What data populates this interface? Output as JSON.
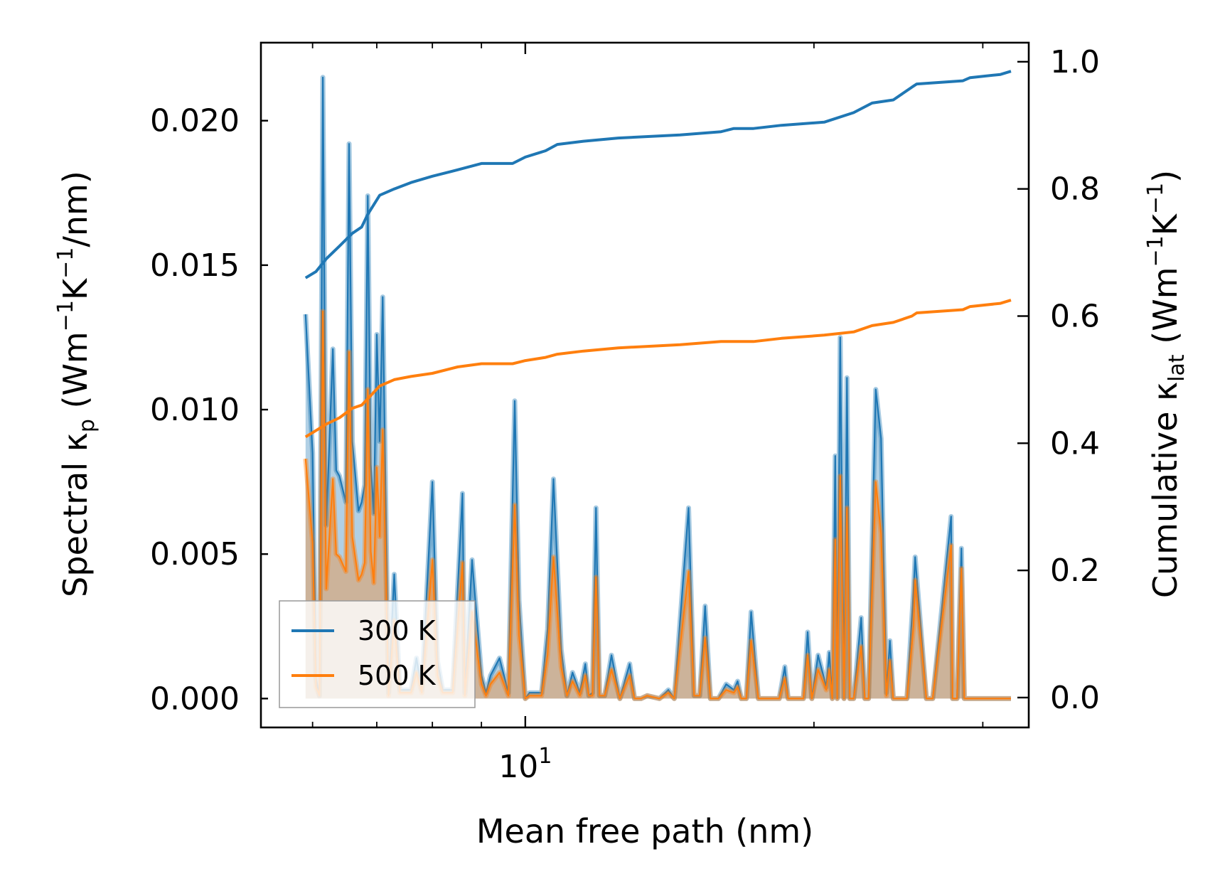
{
  "chart_data": {
    "type": "line",
    "title": "",
    "xlabel": "Mean free path (nm)",
    "ylabel_left": {
      "main": "Spectral κ",
      "sub": "p",
      "unit_pre": "(Wm",
      "exp1": "−1",
      "mid": "K",
      "exp2": "−1",
      "unit_post": "/nm)"
    },
    "ylabel_right": {
      "main": "Cumulative κ",
      "sub": "lat",
      "unit_pre": "(Wm",
      "exp1": "−1",
      "mid": "K",
      "exp2": "−1",
      "unit_post": ")"
    },
    "xscale": "log",
    "xlim": [
      5.3,
      33.5
    ],
    "ylim_left": [
      -0.001,
      0.0227
    ],
    "ylim_right": [
      -0.047,
      1.03
    ],
    "x_ticks": [
      {
        "value": 10,
        "base": "10",
        "exp": "1"
      }
    ],
    "y_ticks_left": [
      "0.000",
      "0.005",
      "0.010",
      "0.015",
      "0.020"
    ],
    "y_ticks_right": [
      "0.0",
      "0.2",
      "0.4",
      "0.6",
      "0.8",
      "1.0"
    ],
    "legend": {
      "position": "lower-left",
      "entries": [
        {
          "label": "300 K",
          "color": "#1f77b4"
        },
        {
          "label": "500 K",
          "color": "#ff7f0e"
        }
      ]
    },
    "series": [
      {
        "name": "300 K spectral",
        "axis": "left",
        "color": "#1f77b4",
        "fill": true,
        "x": [
          5.9,
          6.0,
          6.05,
          6.1,
          6.15,
          6.2,
          6.3,
          6.35,
          6.4,
          6.5,
          6.55,
          6.6,
          6.7,
          6.75,
          6.8,
          6.85,
          6.9,
          6.95,
          7.0,
          7.05,
          7.1,
          7.2,
          7.3,
          7.4,
          7.6,
          7.7,
          7.8,
          8.0,
          8.1,
          8.2,
          8.4,
          8.6,
          8.65,
          8.8,
          9.0,
          9.1,
          9.2,
          9.4,
          9.6,
          9.75,
          9.85,
          10.0,
          10.1,
          10.4,
          10.55,
          10.7,
          10.9,
          11.05,
          11.2,
          11.4,
          11.55,
          11.65,
          11.75,
          11.85,
          11.95,
          12.1,
          12.3,
          12.55,
          12.85,
          13.0,
          13.2,
          13.4,
          13.8,
          14.1,
          14.3,
          14.8,
          15.0,
          15.2,
          15.4,
          15.6,
          15.75,
          15.9,
          16.2,
          16.5,
          16.65,
          16.8,
          17.0,
          17.2,
          17.5,
          17.85,
          18.1,
          18.4,
          18.65,
          18.8,
          19.0,
          19.3,
          19.5,
          19.7,
          19.9,
          20.2,
          20.6,
          20.75,
          20.9,
          21.05,
          21.15,
          21.3,
          21.5,
          21.65,
          21.8,
          22.0,
          22.4,
          22.6,
          22.8,
          23.2,
          23.5,
          23.8,
          24.0,
          24.2,
          24.6,
          25.0,
          25.4,
          25.5,
          26.2,
          26.4,
          26.6,
          27.8,
          27.9,
          28.2,
          28.5,
          28.7,
          29.8,
          30.0,
          30.4,
          31.2,
          31.4,
          31.6,
          31.85,
          32.1
        ],
        "y": [
          0.0133,
          0.0085,
          0.0007,
          0.0001,
          0.0215,
          0.006,
          0.0121,
          0.0079,
          0.0077,
          0.0068,
          0.0192,
          0.0089,
          0.0065,
          0.0068,
          0.0074,
          0.0174,
          0.0081,
          0.0064,
          0.0126,
          0.0089,
          0.0139,
          0.0002,
          0.0043,
          0.0003,
          0.0003,
          0.0014,
          0.0003,
          0.0075,
          0.0013,
          0.0003,
          0.0003,
          0.0071,
          0.0002,
          0.0048,
          0.0008,
          0.0002,
          0.0008,
          0.0014,
          0.0002,
          0.0103,
          0.0034,
          0.0,
          0.0002,
          0.0002,
          0.0024,
          0.0076,
          0.0017,
          0.0001,
          0.0009,
          0.0002,
          0.0012,
          0.0001,
          0.0002,
          0.0066,
          0.0001,
          0.0001,
          0.0015,
          0.0,
          0.0012,
          0.0,
          0.0,
          0.0001,
          0.0,
          0.0003,
          0.0,
          0.0066,
          0.0001,
          0.0001,
          0.0032,
          0.0,
          0.0,
          0.0,
          0.0005,
          0.0003,
          0.0006,
          0.0,
          0.0,
          0.003,
          0.0,
          0.0,
          0.0,
          0.0,
          0.0011,
          0.0,
          0.0,
          0.0,
          0.0,
          0.0023,
          0.0,
          0.0015,
          0.0004,
          0.0016,
          0.0,
          0.0084,
          0.0,
          0.0125,
          0.0,
          0.0111,
          0.0,
          0.0,
          0.0028,
          0.0,
          0.0,
          0.0107,
          0.009,
          0.0002,
          0.002,
          0.0,
          0.0,
          0.0,
          0.0037,
          0.0049,
          0.0,
          0.0,
          0.0,
          0.0063,
          0.0,
          0.0,
          0.0052,
          0.0,
          0.0,
          0.0,
          0.0,
          0.0,
          0.0,
          0.0,
          0.0,
          0.0
        ]
      },
      {
        "name": "500 K spectral",
        "axis": "left",
        "color": "#ff7f0e",
        "fill": true,
        "x": [
          5.9,
          6.0,
          6.05,
          6.1,
          6.15,
          6.2,
          6.3,
          6.35,
          6.4,
          6.5,
          6.55,
          6.6,
          6.7,
          6.75,
          6.8,
          6.85,
          6.9,
          6.95,
          7.0,
          7.05,
          7.1,
          7.2,
          7.3,
          7.4,
          7.6,
          7.7,
          7.8,
          8.0,
          8.1,
          8.2,
          8.4,
          8.6,
          8.65,
          8.8,
          9.0,
          9.1,
          9.2,
          9.4,
          9.6,
          9.75,
          9.85,
          10.0,
          10.1,
          10.4,
          10.55,
          10.7,
          10.9,
          11.05,
          11.2,
          11.4,
          11.55,
          11.65,
          11.75,
          11.85,
          11.95,
          12.1,
          12.3,
          12.55,
          12.85,
          13.0,
          13.2,
          13.4,
          13.8,
          14.1,
          14.3,
          14.8,
          15.0,
          15.2,
          15.4,
          15.6,
          15.75,
          15.9,
          16.2,
          16.5,
          16.65,
          16.8,
          17.0,
          17.2,
          17.5,
          17.85,
          18.1,
          18.4,
          18.65,
          18.8,
          19.0,
          19.3,
          19.5,
          19.7,
          19.9,
          20.2,
          20.6,
          20.75,
          20.9,
          21.05,
          21.15,
          21.3,
          21.5,
          21.65,
          21.8,
          22.0,
          22.4,
          22.6,
          22.8,
          23.2,
          23.5,
          23.8,
          24.0,
          24.2,
          24.6,
          25.0,
          25.4,
          25.5,
          26.2,
          26.4,
          26.6,
          27.8,
          27.9,
          28.2,
          28.5,
          28.7,
          29.8,
          30.0,
          30.4,
          31.2,
          31.4,
          31.6,
          31.85,
          32.1
        ],
        "y": [
          0.0083,
          0.0054,
          0.0004,
          0.0001,
          0.0134,
          0.0038,
          0.0076,
          0.005,
          0.0049,
          0.0044,
          0.012,
          0.0056,
          0.0041,
          0.0043,
          0.0047,
          0.0107,
          0.0051,
          0.004,
          0.008,
          0.0056,
          0.0093,
          0.0001,
          0.0027,
          0.0002,
          0.0002,
          0.0009,
          0.0002,
          0.0048,
          0.0008,
          0.0002,
          0.0002,
          0.0047,
          0.0001,
          0.003,
          0.0005,
          0.0001,
          0.0005,
          0.0009,
          0.0001,
          0.0067,
          0.0022,
          0.0,
          0.0001,
          0.0001,
          0.0015,
          0.0049,
          0.0011,
          0.0001,
          0.0006,
          0.0001,
          0.0008,
          0.0001,
          0.0001,
          0.0042,
          0.0001,
          0.0001,
          0.001,
          0.0,
          0.0008,
          0.0,
          0.0,
          0.0001,
          0.0,
          0.0002,
          0.0,
          0.0044,
          0.0001,
          0.0001,
          0.0021,
          0.0,
          0.0,
          0.0,
          0.0003,
          0.0002,
          0.0004,
          0.0,
          0.0,
          0.002,
          0.0,
          0.0,
          0.0,
          0.0,
          0.0007,
          0.0,
          0.0,
          0.0,
          0.0,
          0.0015,
          0.0,
          0.001,
          0.0003,
          0.001,
          0.0,
          0.0055,
          0.0,
          0.0077,
          0.0,
          0.0066,
          0.0,
          0.0,
          0.0018,
          0.0,
          0.0,
          0.0075,
          0.0057,
          0.0001,
          0.0013,
          0.0,
          0.0,
          0.0,
          0.0025,
          0.0041,
          0.0,
          0.0,
          0.0,
          0.0053,
          0.0,
          0.0,
          0.0045,
          0.0,
          0.0,
          0.0,
          0.0,
          0.0,
          0.0,
          0.0,
          0.0,
          0.0
        ]
      },
      {
        "name": "300 K",
        "axis": "right",
        "color": "#1f77b4",
        "fill": false,
        "x": [
          5.9,
          6.05,
          6.2,
          6.4,
          6.6,
          6.75,
          6.85,
          7.05,
          7.3,
          7.6,
          8.0,
          8.5,
          9.0,
          9.7,
          10.0,
          10.5,
          10.8,
          11.5,
          12.5,
          14.5,
          16.0,
          16.5,
          17.3,
          18.5,
          20.5,
          22.0,
          23.0,
          24.2,
          25.3,
          25.6,
          28.6,
          29.1,
          31.3,
          32.1
        ],
        "y": [
          0.66,
          0.67,
          0.69,
          0.71,
          0.73,
          0.74,
          0.76,
          0.79,
          0.8,
          0.81,
          0.82,
          0.83,
          0.84,
          0.84,
          0.85,
          0.86,
          0.87,
          0.875,
          0.88,
          0.885,
          0.89,
          0.895,
          0.895,
          0.9,
          0.905,
          0.92,
          0.935,
          0.94,
          0.96,
          0.965,
          0.97,
          0.975,
          0.98,
          0.985
        ]
      },
      {
        "name": "500 K",
        "axis": "right",
        "color": "#ff7f0e",
        "fill": false,
        "x": [
          5.9,
          6.05,
          6.2,
          6.4,
          6.6,
          6.75,
          6.85,
          7.05,
          7.3,
          7.6,
          8.0,
          8.5,
          9.0,
          9.7,
          10.0,
          10.5,
          10.8,
          11.5,
          12.5,
          14.5,
          16.0,
          16.5,
          17.3,
          18.5,
          20.5,
          22.0,
          23.0,
          24.2,
          25.3,
          25.6,
          28.6,
          29.1,
          31.3,
          32.1
        ],
        "y": [
          0.41,
          0.42,
          0.43,
          0.44,
          0.455,
          0.46,
          0.47,
          0.49,
          0.5,
          0.505,
          0.51,
          0.52,
          0.525,
          0.525,
          0.53,
          0.535,
          0.54,
          0.545,
          0.55,
          0.555,
          0.56,
          0.56,
          0.56,
          0.565,
          0.57,
          0.575,
          0.585,
          0.59,
          0.6,
          0.605,
          0.61,
          0.615,
          0.62,
          0.625
        ]
      }
    ]
  }
}
